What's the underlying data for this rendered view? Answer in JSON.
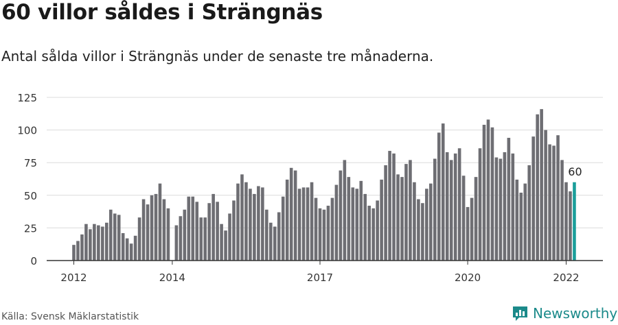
{
  "header": {
    "title": "60 villor såldes i Strängnäs",
    "subtitle": "Antal sålda villor i Strängnäs under de senaste tre månaderna."
  },
  "footer": {
    "source": "Källa: Svensk Mäklarstatistik",
    "brand": "Newsworthy",
    "brand_icon": "newsworthy-logo-icon"
  },
  "colors": {
    "bar": "#6e6e73",
    "highlight": "#1a9e9a",
    "grid": "#dcdcdc",
    "axis": "#333333",
    "brand": "#1b8a8a"
  },
  "chart_data": {
    "type": "bar",
    "title": "60 villor såldes i Strängnäs",
    "subtitle": "Antal sålda villor i Strängnäs under de senaste tre månaderna.",
    "xlabel": "",
    "ylabel": "",
    "ylim": [
      0,
      125
    ],
    "yticks": [
      0,
      25,
      50,
      75,
      100,
      125
    ],
    "grid": true,
    "x_start": "2012-01",
    "x_end": "2022-03",
    "x_ticks": [
      {
        "label": "2012",
        "month": "2012-01"
      },
      {
        "label": "2014",
        "month": "2014-01"
      },
      {
        "label": "2017",
        "month": "2017-01"
      },
      {
        "label": "2020",
        "month": "2020-01"
      },
      {
        "label": "2022",
        "month": "2022-01"
      }
    ],
    "highlight_label": "60",
    "series": [
      {
        "values": [
          12,
          15,
          20,
          28,
          24,
          28,
          27,
          26,
          29,
          39,
          36,
          35,
          21,
          17,
          13,
          19,
          33,
          47,
          43,
          50,
          51,
          59,
          47,
          40,
          null,
          27,
          34,
          39,
          49,
          49,
          45,
          33,
          33,
          44,
          51,
          45,
          28,
          23,
          36,
          46,
          59,
          66,
          60,
          55,
          51,
          57,
          56,
          39,
          29,
          26,
          37,
          49,
          62,
          71,
          69,
          55,
          56,
          56,
          60,
          48,
          40,
          39,
          42,
          48,
          58,
          69,
          77,
          64,
          56,
          55,
          61,
          51,
          42,
          40,
          46,
          62,
          73,
          84,
          82,
          66,
          64,
          74,
          77,
          60,
          47,
          44,
          55,
          59,
          78,
          98,
          105,
          83,
          77,
          82,
          86,
          65,
          41,
          48,
          64,
          86,
          104,
          108,
          102,
          79,
          78,
          83,
          94,
          82,
          62,
          52,
          59,
          73,
          95,
          112,
          116,
          100,
          89,
          88,
          96,
          77,
          60,
          53,
          60
        ]
      }
    ]
  }
}
